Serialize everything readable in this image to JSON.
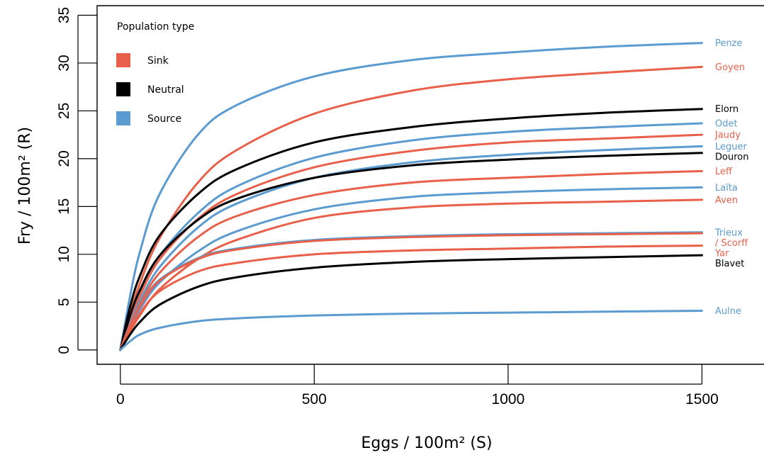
{
  "colors": {
    "Sink": "#E8604A",
    "Neutral": "#000000",
    "Source": "#5B9BD0"
  },
  "chart_data": {
    "type": "line",
    "xlabel": "Eggs / 100m² (S)",
    "ylabel": "Fry / 100m² (R)",
    "xlim": [
      -60,
      1660
    ],
    "ylim": [
      -1.5,
      36
    ],
    "xticks": [
      0,
      500,
      1000,
      1500
    ],
    "yticks": [
      0,
      5,
      10,
      15,
      20,
      25,
      30,
      35
    ],
    "grid": false,
    "legend": {
      "title": "Population type",
      "placement": "top-left",
      "entries": [
        {
          "label": "Sink",
          "type": "Sink"
        },
        {
          "label": "Neutral",
          "type": "Neutral"
        },
        {
          "label": "Source",
          "type": "Source"
        }
      ]
    },
    "x": [
      0,
      25,
      50,
      100,
      200,
      300,
      500,
      750,
      1000,
      1250,
      1500
    ],
    "series": [
      {
        "name": "Penze",
        "label": "Penze",
        "type": "Source",
        "values": [
          0,
          5.6,
          10.2,
          16.2,
          22.5,
          25.6,
          28.6,
          30.3,
          31.1,
          31.7,
          32.1
        ]
      },
      {
        "name": "Goyen",
        "label": "Goyen",
        "type": "Sink",
        "values": [
          0,
          3.8,
          6.9,
          11.6,
          17.5,
          20.9,
          24.7,
          27.1,
          28.3,
          29.0,
          29.6
        ]
      },
      {
        "name": "Elorn",
        "label": "Elorn",
        "type": "Neutral",
        "values": [
          0,
          4.5,
          7.7,
          11.9,
          16.3,
          18.9,
          21.7,
          23.3,
          24.2,
          24.8,
          25.2
        ]
      },
      {
        "name": "Odet",
        "label": "Odet",
        "type": "Source",
        "values": [
          0,
          3.4,
          6.0,
          9.8,
          14.3,
          17.1,
          20.1,
          21.9,
          22.8,
          23.3,
          23.7
        ]
      },
      {
        "name": "Jaudy",
        "label": "Jaudy",
        "type": "Sink",
        "values": [
          0,
          3.1,
          5.6,
          9.4,
          13.7,
          16.3,
          19.1,
          20.8,
          21.7,
          22.1,
          22.5
        ]
      },
      {
        "name": "Leguer",
        "label": "Leguer",
        "type": "Source",
        "values": [
          0,
          2.8,
          5.1,
          8.6,
          12.8,
          15.3,
          18.0,
          19.6,
          20.4,
          20.9,
          21.3
        ]
      },
      {
        "name": "Douron",
        "label": "Douron",
        "type": "Neutral",
        "values": [
          0,
          3.6,
          6.2,
          9.8,
          13.6,
          15.8,
          18.0,
          19.3,
          19.9,
          20.3,
          20.6
        ]
      },
      {
        "name": "Leff",
        "label": "Leff",
        "type": "Sink",
        "values": [
          0,
          2.7,
          4.8,
          8.0,
          11.8,
          14.0,
          16.2,
          17.5,
          18.0,
          18.4,
          18.7
        ]
      },
      {
        "name": "Laïta",
        "label": "Laïta",
        "type": "Source",
        "values": [
          0,
          2.3,
          4.2,
          7.0,
          10.3,
          12.4,
          14.7,
          16.0,
          16.5,
          16.8,
          17.0
        ]
      },
      {
        "name": "Aven",
        "label": "Aven",
        "type": "Sink",
        "values": [
          0,
          1.9,
          3.6,
          6.3,
          9.5,
          11.5,
          13.8,
          14.9,
          15.3,
          15.5,
          15.7
        ]
      },
      {
        "name": "Trieux",
        "label": "Trieux",
        "type": "Source",
        "values": [
          0,
          2.6,
          4.6,
          7.3,
          9.6,
          10.6,
          11.5,
          11.9,
          12.1,
          12.2,
          12.3
        ]
      },
      {
        "name": "Scorff",
        "label": "/ Scorff",
        "type": "Sink",
        "values": [
          0,
          2.5,
          4.5,
          7.2,
          9.5,
          10.5,
          11.4,
          11.8,
          12.0,
          12.1,
          12.2
        ]
      },
      {
        "name": "Yar",
        "label": "Yar",
        "type": "Sink",
        "values": [
          0,
          2.1,
          3.8,
          6.1,
          8.2,
          9.1,
          10.0,
          10.4,
          10.6,
          10.8,
          10.9
        ]
      },
      {
        "name": "Blavet",
        "label": "Blavet",
        "type": "Neutral",
        "values": [
          0,
          1.6,
          2.9,
          4.7,
          6.6,
          7.6,
          8.6,
          9.2,
          9.5,
          9.7,
          9.9
        ]
      },
      {
        "name": "Aulne",
        "label": "Aulne",
        "type": "Source",
        "values": [
          0,
          0.9,
          1.6,
          2.3,
          3.0,
          3.3,
          3.6,
          3.8,
          3.9,
          4.0,
          4.1
        ]
      }
    ]
  }
}
